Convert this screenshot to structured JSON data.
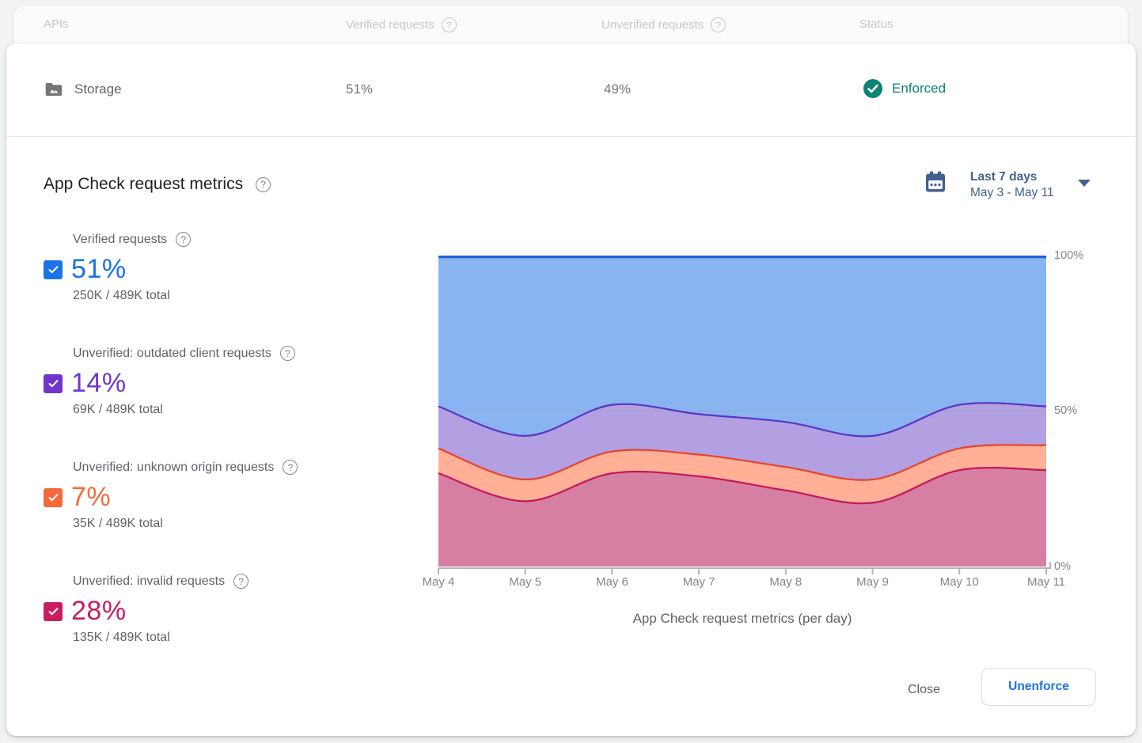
{
  "table": {
    "columns": [
      {
        "label": "APIs"
      },
      {
        "label": "Verified requests",
        "has_help": true
      },
      {
        "label": "Unverified requests",
        "has_help": true
      },
      {
        "label": "Status"
      }
    ],
    "row": {
      "api": "Storage",
      "verified": "51%",
      "unverified": "49%",
      "status": "Enforced"
    }
  },
  "section": {
    "title": "App Check request metrics"
  },
  "date_picker": {
    "range_label": "Last 7 days",
    "range_dates": "May 3 - May 11"
  },
  "metrics": [
    {
      "label": "Verified requests",
      "value": "51%",
      "total": "250K / 489K total",
      "color": "#1a73e8",
      "checked": true
    },
    {
      "label": "Unverified: outdated client requests",
      "value": "14%",
      "total": "69K / 489K total",
      "color": "#7135cd",
      "checked": true
    },
    {
      "label": "Unverified: unknown origin requests",
      "value": "7%",
      "total": "35K / 489K total",
      "color": "#f5693d",
      "checked": true
    },
    {
      "label": "Unverified: invalid requests",
      "value": "28%",
      "total": "135K / 489K total",
      "color": "#c91d5f",
      "checked": true
    }
  ],
  "chart_data": {
    "type": "area",
    "stacked": true,
    "percent_stacked_to_100": true,
    "x": [
      "May 4",
      "May 5",
      "May 6",
      "May 7",
      "May 8",
      "May 9",
      "May 10",
      "May 11"
    ],
    "series": [
      {
        "name": "Unverified: invalid requests",
        "color_fill": "#d77fa2",
        "color_line": "#c2185b",
        "values": [
          30,
          21,
          30,
          29,
          24.5,
          20.5,
          31,
          31
        ]
      },
      {
        "name": "Unverified: unknown origin requests",
        "color_fill": "#ffb096",
        "color_line": "#e8432f",
        "values": [
          8,
          7,
          7,
          7,
          7.5,
          7.5,
          7,
          8
        ]
      },
      {
        "name": "Unverified: outdated client requests",
        "color_fill": "#b2a0e2",
        "color_line": "#5a35c4",
        "values": [
          13.5,
          14,
          15,
          13,
          14.5,
          14,
          14,
          12.5
        ]
      },
      {
        "name": "Verified requests",
        "color_fill": "#89b3f1",
        "color_line": "#1b63d8",
        "values": [
          48.5,
          58,
          48,
          51,
          53.5,
          58,
          48,
          48.5
        ]
      }
    ],
    "title": "App Check request metrics (per day)",
    "xlabel": "",
    "ylabel": "",
    "ylim": [
      0,
      100
    ],
    "y_ticks": [
      "100%",
      "50%",
      "0%"
    ],
    "y_axis_side": "right",
    "grid": "horizontal line at 50% only",
    "legend_position": "none (metric checkboxes at left act as legend)"
  },
  "footer": {
    "close_label": "Close",
    "unenforce_label": "Unenforce"
  },
  "icons": {
    "help": "?"
  },
  "colors": {
    "status_enforced": "#0d8376",
    "date_picker_accent": "#44608c",
    "panel_background": "#ffffff",
    "page_background": "#f1f3f4",
    "muted_text": "#5f6368",
    "disabled_header_text": "#c4c7cc"
  }
}
